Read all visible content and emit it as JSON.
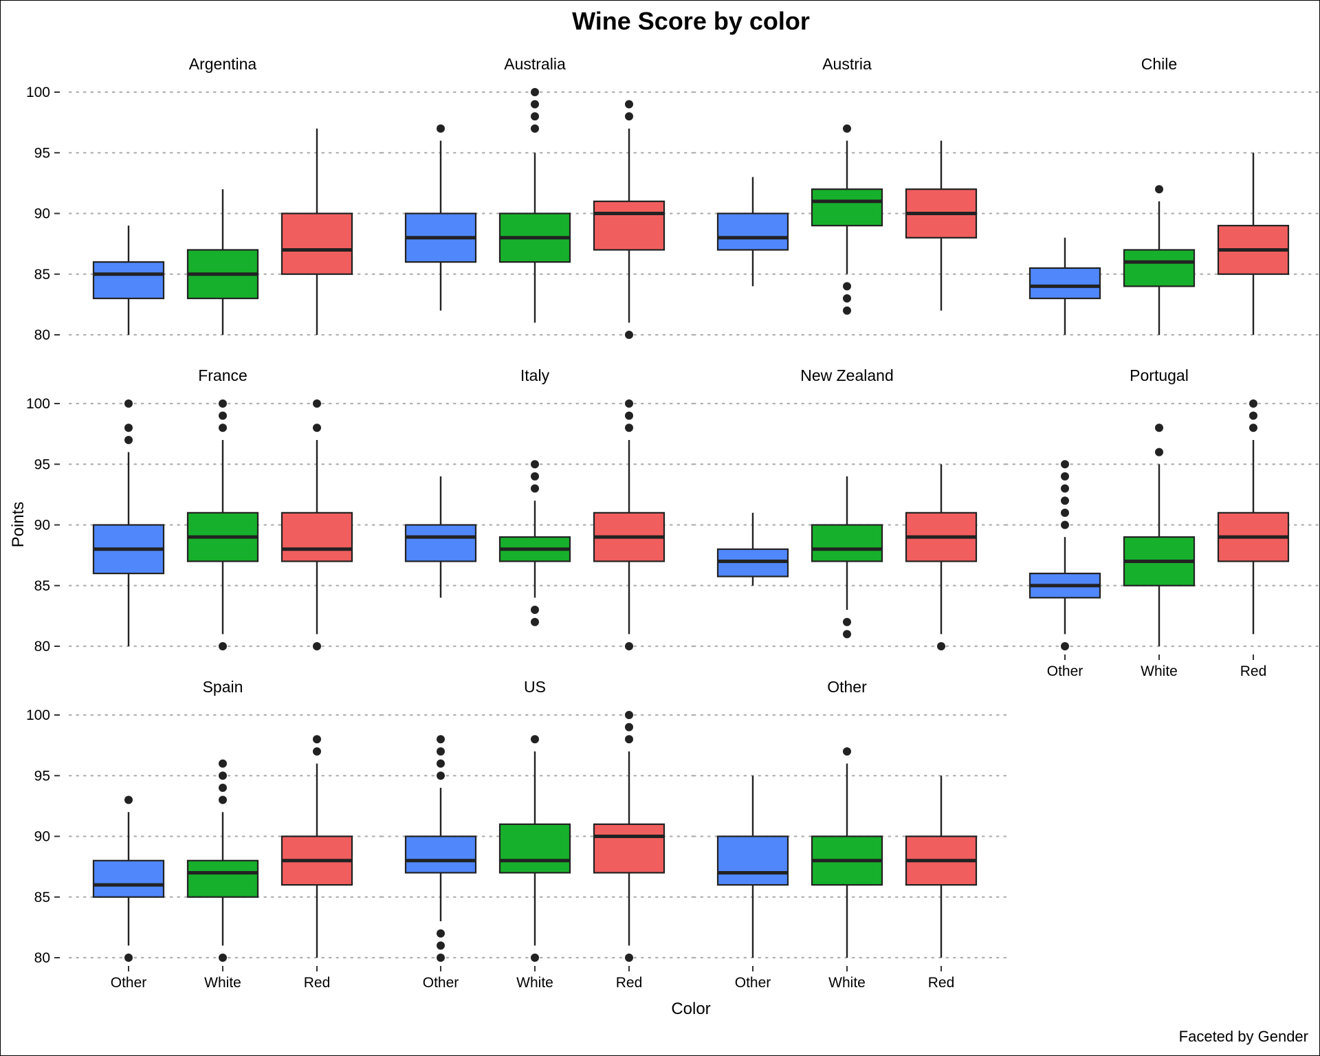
{
  "chart_data": {
    "type": "boxplot",
    "title": "Wine Score by color",
    "xlabel": "Color",
    "ylabel": "Points",
    "caption": "Faceted by Gender",
    "ylim": [
      80,
      100
    ],
    "yticks": [
      80,
      85,
      90,
      95,
      100
    ],
    "grid": "horizontal dotted",
    "categories": [
      "Other",
      "White",
      "Red"
    ],
    "colors": {
      "Other": "#5087FB",
      "White": "#17B02C",
      "Red": "#F15E5E"
    },
    "facets": [
      {
        "name": "Argentina",
        "boxes": [
          {
            "category": "Other",
            "q1": 83,
            "median": 85,
            "q3": 86,
            "whisker_low": 80,
            "whisker_high": 89,
            "outliers": []
          },
          {
            "category": "White",
            "q1": 83,
            "median": 85,
            "q3": 87,
            "whisker_low": 80,
            "whisker_high": 92,
            "outliers": []
          },
          {
            "category": "Red",
            "q1": 85,
            "median": 87,
            "q3": 90,
            "whisker_low": 80,
            "whisker_high": 97,
            "outliers": []
          }
        ]
      },
      {
        "name": "Australia",
        "boxes": [
          {
            "category": "Other",
            "q1": 86,
            "median": 88,
            "q3": 90,
            "whisker_low": 82,
            "whisker_high": 96,
            "outliers": [
              97
            ]
          },
          {
            "category": "White",
            "q1": 86,
            "median": 88,
            "q3": 90,
            "whisker_low": 81,
            "whisker_high": 95,
            "outliers": [
              97,
              98,
              99,
              100
            ]
          },
          {
            "category": "Red",
            "q1": 87,
            "median": 90,
            "q3": 91,
            "whisker_low": 81,
            "whisker_high": 97,
            "outliers": [
              80,
              98,
              99
            ]
          }
        ]
      },
      {
        "name": "Austria",
        "boxes": [
          {
            "category": "Other",
            "q1": 87,
            "median": 88,
            "q3": 90,
            "whisker_low": 84,
            "whisker_high": 93,
            "outliers": []
          },
          {
            "category": "White",
            "q1": 89,
            "median": 91,
            "q3": 92,
            "whisker_low": 85,
            "whisker_high": 96,
            "outliers": [
              82,
              83,
              84,
              97
            ]
          },
          {
            "category": "Red",
            "q1": 88,
            "median": 90,
            "q3": 92,
            "whisker_low": 82,
            "whisker_high": 96,
            "outliers": []
          }
        ]
      },
      {
        "name": "Chile",
        "boxes": [
          {
            "category": "Other",
            "q1": 83,
            "median": 84,
            "q3": 85.5,
            "whisker_low": 80,
            "whisker_high": 88,
            "outliers": []
          },
          {
            "category": "White",
            "q1": 84,
            "median": 86,
            "q3": 87,
            "whisker_low": 80,
            "whisker_high": 91,
            "outliers": [
              92
            ]
          },
          {
            "category": "Red",
            "q1": 85,
            "median": 87,
            "q3": 89,
            "whisker_low": 80,
            "whisker_high": 95,
            "outliers": []
          }
        ]
      },
      {
        "name": "France",
        "boxes": [
          {
            "category": "Other",
            "q1": 86,
            "median": 88,
            "q3": 90,
            "whisker_low": 80,
            "whisker_high": 96,
            "outliers": [
              97,
              98,
              100
            ]
          },
          {
            "category": "White",
            "q1": 87,
            "median": 89,
            "q3": 91,
            "whisker_low": 81,
            "whisker_high": 97,
            "outliers": [
              80,
              98,
              99,
              100
            ]
          },
          {
            "category": "Red",
            "q1": 87,
            "median": 88,
            "q3": 91,
            "whisker_low": 81,
            "whisker_high": 97,
            "outliers": [
              80,
              98,
              100
            ]
          }
        ]
      },
      {
        "name": "Italy",
        "boxes": [
          {
            "category": "Other",
            "q1": 87,
            "median": 89,
            "q3": 90,
            "whisker_low": 84,
            "whisker_high": 94,
            "outliers": []
          },
          {
            "category": "White",
            "q1": 87,
            "median": 88,
            "q3": 89,
            "whisker_low": 84,
            "whisker_high": 92,
            "outliers": [
              82,
              83,
              93,
              94,
              95
            ]
          },
          {
            "category": "Red",
            "q1": 87,
            "median": 89,
            "q3": 91,
            "whisker_low": 81,
            "whisker_high": 97,
            "outliers": [
              80,
              98,
              99,
              100
            ]
          }
        ]
      },
      {
        "name": "New Zealand",
        "boxes": [
          {
            "category": "Other",
            "q1": 85.75,
            "median": 87,
            "q3": 88,
            "whisker_low": 85,
            "whisker_high": 91,
            "outliers": []
          },
          {
            "category": "White",
            "q1": 87,
            "median": 88,
            "q3": 90,
            "whisker_low": 83,
            "whisker_high": 94,
            "outliers": [
              81,
              82
            ]
          },
          {
            "category": "Red",
            "q1": 87,
            "median": 89,
            "q3": 91,
            "whisker_low": 81,
            "whisker_high": 95,
            "outliers": [
              80
            ]
          }
        ]
      },
      {
        "name": "Portugal",
        "boxes": [
          {
            "category": "Other",
            "q1": 84,
            "median": 85,
            "q3": 86,
            "whisker_low": 81,
            "whisker_high": 89,
            "outliers": [
              80,
              90,
              91,
              92,
              93,
              94,
              95
            ]
          },
          {
            "category": "White",
            "q1": 85,
            "median": 87,
            "q3": 89,
            "whisker_low": 80,
            "whisker_high": 95,
            "outliers": [
              96,
              98
            ]
          },
          {
            "category": "Red",
            "q1": 87,
            "median": 89,
            "q3": 91,
            "whisker_low": 81,
            "whisker_high": 97,
            "outliers": [
              98,
              99,
              100
            ]
          }
        ]
      },
      {
        "name": "Spain",
        "boxes": [
          {
            "category": "Other",
            "q1": 85,
            "median": 86,
            "q3": 88,
            "whisker_low": 81,
            "whisker_high": 92,
            "outliers": [
              80,
              93
            ]
          },
          {
            "category": "White",
            "q1": 85,
            "median": 87,
            "q3": 88,
            "whisker_low": 81,
            "whisker_high": 92,
            "outliers": [
              80,
              93,
              94,
              95,
              96
            ]
          },
          {
            "category": "Red",
            "q1": 86,
            "median": 88,
            "q3": 90,
            "whisker_low": 80,
            "whisker_high": 96,
            "outliers": [
              97,
              98
            ]
          }
        ]
      },
      {
        "name": "US",
        "boxes": [
          {
            "category": "Other",
            "q1": 87,
            "median": 88,
            "q3": 90,
            "whisker_low": 83,
            "whisker_high": 94,
            "outliers": [
              80,
              81,
              82,
              95,
              96,
              97,
              98
            ]
          },
          {
            "category": "White",
            "q1": 87,
            "median": 88,
            "q3": 91,
            "whisker_low": 81,
            "whisker_high": 97,
            "outliers": [
              80,
              98
            ]
          },
          {
            "category": "Red",
            "q1": 87,
            "median": 90,
            "q3": 91,
            "whisker_low": 81,
            "whisker_high": 97,
            "outliers": [
              80,
              98,
              99,
              100
            ]
          }
        ]
      },
      {
        "name": "Other",
        "boxes": [
          {
            "category": "Other",
            "q1": 86,
            "median": 87,
            "q3": 90,
            "whisker_low": 80,
            "whisker_high": 95,
            "outliers": []
          },
          {
            "category": "White",
            "q1": 86,
            "median": 88,
            "q3": 90,
            "whisker_low": 80,
            "whisker_high": 96,
            "outliers": [
              97
            ]
          },
          {
            "category": "Red",
            "q1": 86,
            "median": 88,
            "q3": 90,
            "whisker_low": 80,
            "whisker_high": 95,
            "outliers": []
          }
        ]
      }
    ]
  }
}
